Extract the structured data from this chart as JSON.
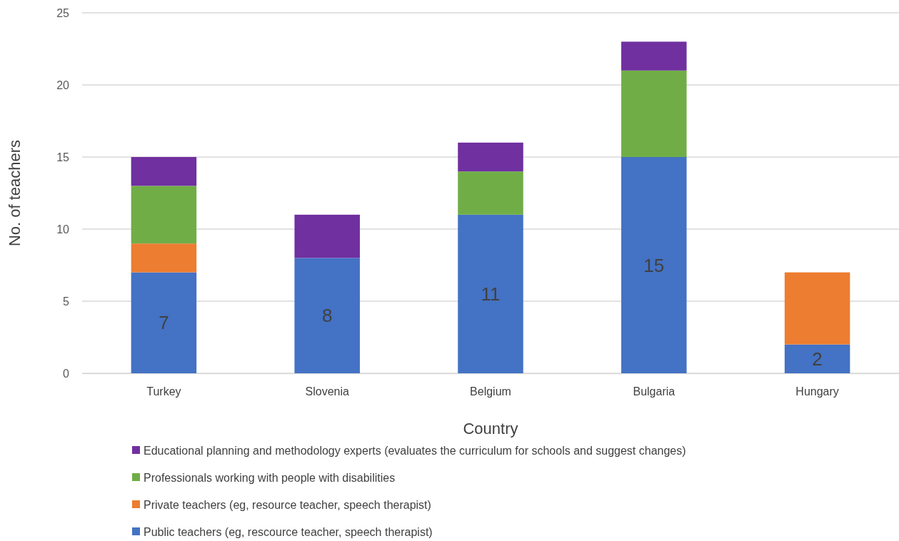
{
  "chart_data": {
    "type": "bar",
    "stacked": true,
    "xlabel": "Country",
    "ylabel": "No. of teachers",
    "categories": [
      "Turkey",
      "Slovenia",
      "Belgium",
      "Bulgaria",
      "Hungary"
    ],
    "series": [
      {
        "name": "Public teachers (eg, rescource teacher, speech therapist)",
        "color": "#4472c4",
        "values": [
          7,
          8,
          11,
          15,
          2
        ],
        "value_labels": [
          "7",
          "8",
          "11",
          "15",
          "2"
        ]
      },
      {
        "name": "Private teachers (eg, resource teacher, speech therapist)",
        "color": "#ed7d31",
        "values": [
          2,
          null,
          null,
          null,
          5
        ]
      },
      {
        "name": "Professionals working with people with disabilities",
        "color": "#70ad47",
        "values": [
          4,
          null,
          3,
          6,
          null
        ]
      },
      {
        "name": "Educational planning and methodology experts (evaluates the curriculum for schools and suggest changes)",
        "color": "#7030a0",
        "values": [
          2,
          3,
          2,
          2,
          null
        ]
      }
    ],
    "ylim": [
      0,
      25
    ],
    "yticks": [
      0,
      5,
      10,
      15,
      20,
      25
    ],
    "grid": "y",
    "legend": "bottom"
  }
}
